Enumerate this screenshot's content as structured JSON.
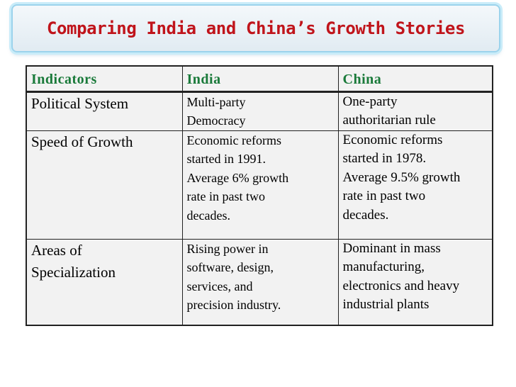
{
  "slide": {
    "title": "Comparing India and China’s Growth Stories"
  },
  "table": {
    "headers": [
      "Indicators",
      "India",
      "China"
    ],
    "rows": [
      {
        "indicator": "Political System",
        "india": "Multi-party\nDemocracy",
        "china": "One-party\nauthoritarian rule"
      },
      {
        "indicator": "Speed of  Growth",
        "india": "Economic reforms\nstarted in 1991.\nAverage 6% growth\nrate in past two\ndecades.",
        "china": "Economic reforms\nstarted in 1978.\nAverage 9.5% growth\nrate in past two\ndecades."
      },
      {
        "indicator": "Areas of\nSpecialization",
        "india": "Rising power in\nsoftware, design,\nservices, and\nprecision industry.",
        "china": "Dominant in mass\nmanufacturing,\nelectronics and heavy\nindustrial plants"
      }
    ]
  },
  "colors": {
    "title": "#c0141b",
    "header_text": "#1a7a3a",
    "title_box_border": "#9bd3ec",
    "table_bg": "#f2f2f2"
  }
}
